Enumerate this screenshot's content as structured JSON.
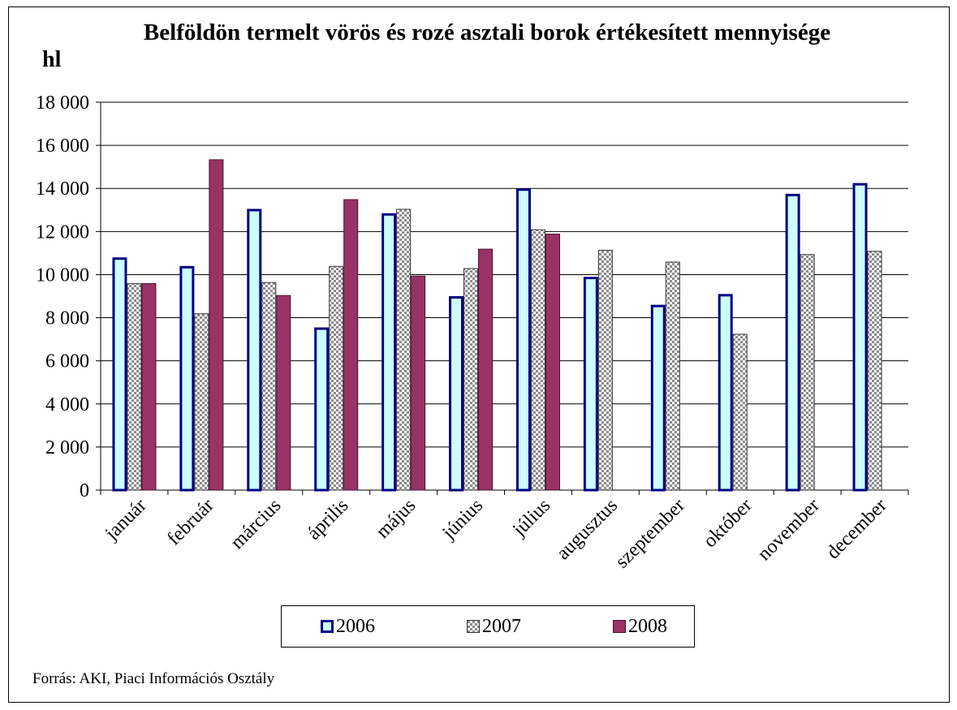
{
  "chart_data": {
    "type": "bar",
    "title": "Belföldön termelt vörös és rozé asztali borok értékesített mennyisége",
    "ylabel": "hl",
    "xlabel": "",
    "ylim": [
      0,
      18000
    ],
    "yticks": [
      0,
      2000,
      4000,
      6000,
      8000,
      10000,
      12000,
      14000,
      16000,
      18000
    ],
    "ytick_labels": [
      "0",
      "2 000",
      "4 000",
      "6 000",
      "8 000",
      "10 000",
      "12 000",
      "14 000",
      "16 000",
      "18 000"
    ],
    "grid": true,
    "legend_position": "bottom",
    "categories": [
      "január",
      "február",
      "március",
      "április",
      "május",
      "június",
      "július",
      "augusztus",
      "szeptember",
      "október",
      "november",
      "december"
    ],
    "series": [
      {
        "name": "2006",
        "color": "#ccffff",
        "edge": "#000080",
        "pattern": "solid",
        "values": [
          10800,
          10400,
          13050,
          7550,
          12850,
          9000,
          14000,
          9900,
          8600,
          9100,
          13750,
          14250
        ]
      },
      {
        "name": "2007",
        "color": "#c0c0c0",
        "edge": "#333333",
        "pattern": "checker",
        "values": [
          9600,
          8200,
          9650,
          10400,
          13050,
          10300,
          12100,
          11150,
          10600,
          7250,
          10950,
          11100
        ]
      },
      {
        "name": "2008",
        "color": "#993366",
        "edge": "#4a1030",
        "pattern": "solid",
        "values": [
          9600,
          15350,
          9050,
          13500,
          9950,
          11200,
          11900,
          null,
          null,
          null,
          null,
          null
        ]
      }
    ]
  },
  "legend": {
    "items": [
      "2006",
      "2007",
      "2008"
    ]
  },
  "source_text": "Forrás: AKI, Piaci Információs Osztály"
}
